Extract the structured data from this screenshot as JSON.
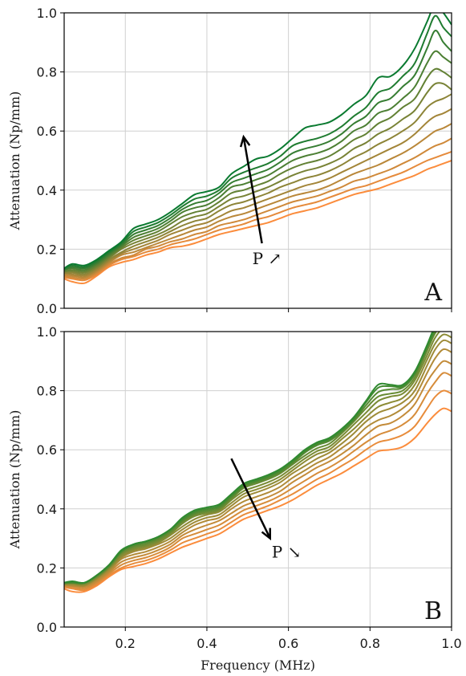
{
  "chart_data": [
    {
      "type": "line",
      "panel_label": "A",
      "ylabel": "Attenuation (Np/mm)",
      "xlabel": "",
      "xlim": [
        0.05,
        1.0
      ],
      "ylim": [
        0.0,
        1.0
      ],
      "xticks": [
        0.2,
        0.4,
        0.6,
        0.8,
        1.0
      ],
      "xtick_labels": [
        "",
        "",
        "",
        "",
        ""
      ],
      "yticks": [
        0.0,
        0.2,
        0.4,
        0.6,
        0.8,
        1.0
      ],
      "ytick_labels": [
        "0.0",
        "0.2",
        "0.4",
        "0.6",
        "0.8",
        "1.0"
      ],
      "grid": true,
      "legend": "none",
      "annotation": {
        "text": "P ↗",
        "arrow_from": [
          0.535,
          0.22
        ],
        "arrow_to": [
          0.49,
          0.58
        ]
      },
      "color_from": "#fb8c3c",
      "color_to": "#0a7a30",
      "x": [
        0.05,
        0.07,
        0.1,
        0.13,
        0.16,
        0.19,
        0.22,
        0.25,
        0.28,
        0.31,
        0.34,
        0.37,
        0.4,
        0.43,
        0.46,
        0.49,
        0.52,
        0.55,
        0.58,
        0.61,
        0.64,
        0.67,
        0.7,
        0.73,
        0.76,
        0.79,
        0.82,
        0.85,
        0.88,
        0.91,
        0.94,
        0.96,
        0.98,
        1.0
      ],
      "series": [
        {
          "values": [
            0.1,
            0.09,
            0.085,
            0.11,
            0.14,
            0.155,
            0.165,
            0.18,
            0.19,
            0.205,
            0.21,
            0.22,
            0.235,
            0.25,
            0.26,
            0.27,
            0.28,
            0.29,
            0.305,
            0.32,
            0.33,
            0.34,
            0.355,
            0.37,
            0.385,
            0.395,
            0.405,
            0.42,
            0.435,
            0.45,
            0.47,
            0.48,
            0.49,
            0.5
          ]
        },
        {
          "values": [
            0.105,
            0.1,
            0.095,
            0.115,
            0.145,
            0.165,
            0.175,
            0.19,
            0.2,
            0.215,
            0.225,
            0.235,
            0.25,
            0.265,
            0.275,
            0.285,
            0.3,
            0.31,
            0.325,
            0.34,
            0.35,
            0.36,
            0.375,
            0.39,
            0.405,
            0.415,
            0.43,
            0.445,
            0.46,
            0.48,
            0.5,
            0.51,
            0.52,
            0.53
          ]
        },
        {
          "values": [
            0.11,
            0.105,
            0.1,
            0.12,
            0.15,
            0.17,
            0.18,
            0.2,
            0.21,
            0.225,
            0.235,
            0.25,
            0.26,
            0.28,
            0.29,
            0.3,
            0.315,
            0.33,
            0.345,
            0.36,
            0.37,
            0.38,
            0.395,
            0.41,
            0.43,
            0.44,
            0.455,
            0.47,
            0.49,
            0.51,
            0.535,
            0.55,
            0.56,
            0.575
          ]
        },
        {
          "values": [
            0.115,
            0.11,
            0.105,
            0.125,
            0.155,
            0.18,
            0.19,
            0.205,
            0.22,
            0.235,
            0.25,
            0.265,
            0.275,
            0.295,
            0.31,
            0.32,
            0.335,
            0.35,
            0.365,
            0.38,
            0.39,
            0.4,
            0.415,
            0.435,
            0.455,
            0.47,
            0.485,
            0.505,
            0.525,
            0.55,
            0.58,
            0.6,
            0.61,
            0.625
          ]
        },
        {
          "values": [
            0.12,
            0.115,
            0.11,
            0.13,
            0.16,
            0.185,
            0.2,
            0.215,
            0.23,
            0.25,
            0.265,
            0.28,
            0.29,
            0.31,
            0.33,
            0.34,
            0.355,
            0.37,
            0.385,
            0.4,
            0.415,
            0.425,
            0.44,
            0.46,
            0.48,
            0.5,
            0.52,
            0.54,
            0.56,
            0.59,
            0.63,
            0.65,
            0.66,
            0.675
          ]
        },
        {
          "values": [
            0.12,
            0.12,
            0.115,
            0.135,
            0.165,
            0.19,
            0.21,
            0.225,
            0.24,
            0.26,
            0.28,
            0.295,
            0.305,
            0.33,
            0.35,
            0.36,
            0.375,
            0.39,
            0.41,
            0.425,
            0.44,
            0.45,
            0.465,
            0.485,
            0.51,
            0.53,
            0.555,
            0.575,
            0.6,
            0.63,
            0.68,
            0.7,
            0.71,
            0.725
          ]
        },
        {
          "values": [
            0.125,
            0.125,
            0.12,
            0.14,
            0.17,
            0.2,
            0.22,
            0.235,
            0.25,
            0.27,
            0.295,
            0.31,
            0.32,
            0.345,
            0.37,
            0.38,
            0.395,
            0.41,
            0.43,
            0.45,
            0.465,
            0.475,
            0.49,
            0.51,
            0.54,
            0.56,
            0.59,
            0.61,
            0.64,
            0.67,
            0.73,
            0.76,
            0.76,
            0.74
          ]
        },
        {
          "values": [
            0.125,
            0.13,
            0.125,
            0.145,
            0.175,
            0.205,
            0.23,
            0.245,
            0.26,
            0.285,
            0.31,
            0.325,
            0.335,
            0.36,
            0.39,
            0.4,
            0.415,
            0.43,
            0.455,
            0.475,
            0.49,
            0.5,
            0.515,
            0.54,
            0.57,
            0.59,
            0.625,
            0.645,
            0.68,
            0.71,
            0.78,
            0.81,
            0.8,
            0.78
          ]
        },
        {
          "values": [
            0.13,
            0.135,
            0.13,
            0.15,
            0.18,
            0.21,
            0.24,
            0.255,
            0.27,
            0.295,
            0.325,
            0.34,
            0.35,
            0.375,
            0.41,
            0.42,
            0.435,
            0.45,
            0.475,
            0.5,
            0.515,
            0.525,
            0.54,
            0.565,
            0.6,
            0.62,
            0.66,
            0.675,
            0.71,
            0.75,
            0.83,
            0.87,
            0.85,
            0.83
          ]
        },
        {
          "values": [
            0.13,
            0.14,
            0.135,
            0.155,
            0.185,
            0.215,
            0.25,
            0.265,
            0.28,
            0.305,
            0.335,
            0.355,
            0.365,
            0.39,
            0.425,
            0.44,
            0.455,
            0.47,
            0.495,
            0.525,
            0.54,
            0.55,
            0.565,
            0.59,
            0.625,
            0.65,
            0.695,
            0.71,
            0.75,
            0.79,
            0.88,
            0.94,
            0.9,
            0.87
          ]
        },
        {
          "values": [
            0.135,
            0.145,
            0.14,
            0.16,
            0.19,
            0.22,
            0.26,
            0.275,
            0.29,
            0.315,
            0.345,
            0.37,
            0.38,
            0.4,
            0.44,
            0.46,
            0.475,
            0.49,
            0.515,
            0.55,
            0.565,
            0.575,
            0.59,
            0.615,
            0.65,
            0.68,
            0.73,
            0.745,
            0.785,
            0.83,
            0.93,
            0.99,
            0.95,
            0.92
          ]
        },
        {
          "values": [
            0.135,
            0.15,
            0.145,
            0.165,
            0.195,
            0.225,
            0.27,
            0.285,
            0.3,
            0.325,
            0.355,
            0.385,
            0.395,
            0.41,
            0.455,
            0.48,
            0.505,
            0.515,
            0.54,
            0.575,
            0.61,
            0.62,
            0.63,
            0.655,
            0.69,
            0.72,
            0.78,
            0.785,
            0.82,
            0.88,
            0.97,
            1.03,
            1.0,
            0.96
          ]
        }
      ]
    },
    {
      "type": "line",
      "panel_label": "B",
      "ylabel": "Attenuation (Np/mm)",
      "xlabel": "Frequency (MHz)",
      "xlim": [
        0.05,
        1.0
      ],
      "ylim": [
        0.0,
        1.0
      ],
      "xticks": [
        0.2,
        0.4,
        0.6,
        0.8,
        1.0
      ],
      "xtick_labels": [
        "0.2",
        "0.4",
        "0.6",
        "0.8",
        "1.0"
      ],
      "yticks": [
        0.0,
        0.2,
        0.4,
        0.6,
        0.8,
        1.0
      ],
      "ytick_labels": [
        "0.0",
        "0.2",
        "0.4",
        "0.6",
        "0.8",
        "1.0"
      ],
      "grid": true,
      "legend": "none",
      "annotation": {
        "text": "P ↘",
        "arrow_from": [
          0.46,
          0.57
        ],
        "arrow_to": [
          0.555,
          0.3
        ]
      },
      "color_from": "#fb8c3c",
      "color_to": "#2f8a30",
      "x": [
        0.05,
        0.07,
        0.1,
        0.13,
        0.16,
        0.19,
        0.22,
        0.25,
        0.28,
        0.31,
        0.34,
        0.37,
        0.4,
        0.43,
        0.46,
        0.49,
        0.52,
        0.55,
        0.58,
        0.61,
        0.64,
        0.67,
        0.7,
        0.73,
        0.76,
        0.79,
        0.82,
        0.85,
        0.88,
        0.91,
        0.94,
        0.96,
        0.98,
        1.0
      ],
      "series": [
        {
          "values": [
            0.13,
            0.12,
            0.12,
            0.14,
            0.17,
            0.195,
            0.205,
            0.215,
            0.23,
            0.25,
            0.27,
            0.285,
            0.3,
            0.315,
            0.34,
            0.365,
            0.38,
            0.395,
            0.41,
            0.43,
            0.455,
            0.48,
            0.5,
            0.52,
            0.545,
            0.57,
            0.595,
            0.6,
            0.61,
            0.64,
            0.69,
            0.72,
            0.74,
            0.73
          ]
        },
        {
          "values": [
            0.135,
            0.13,
            0.125,
            0.145,
            0.175,
            0.2,
            0.215,
            0.225,
            0.24,
            0.26,
            0.285,
            0.3,
            0.315,
            0.33,
            0.355,
            0.38,
            0.395,
            0.41,
            0.43,
            0.45,
            0.475,
            0.5,
            0.52,
            0.545,
            0.57,
            0.6,
            0.625,
            0.635,
            0.65,
            0.68,
            0.74,
            0.78,
            0.8,
            0.79
          ]
        },
        {
          "values": [
            0.14,
            0.135,
            0.13,
            0.15,
            0.18,
            0.21,
            0.225,
            0.235,
            0.25,
            0.27,
            0.3,
            0.315,
            0.33,
            0.345,
            0.37,
            0.395,
            0.41,
            0.425,
            0.445,
            0.47,
            0.495,
            0.52,
            0.54,
            0.565,
            0.595,
            0.625,
            0.65,
            0.665,
            0.685,
            0.72,
            0.79,
            0.83,
            0.86,
            0.85
          ]
        },
        {
          "values": [
            0.14,
            0.14,
            0.135,
            0.155,
            0.185,
            0.22,
            0.235,
            0.245,
            0.26,
            0.28,
            0.31,
            0.33,
            0.345,
            0.36,
            0.385,
            0.41,
            0.425,
            0.44,
            0.46,
            0.49,
            0.515,
            0.54,
            0.56,
            0.585,
            0.615,
            0.65,
            0.68,
            0.69,
            0.715,
            0.755,
            0.83,
            0.87,
            0.9,
            0.89
          ]
        },
        {
          "values": [
            0.145,
            0.14,
            0.14,
            0.16,
            0.19,
            0.23,
            0.245,
            0.255,
            0.27,
            0.29,
            0.32,
            0.345,
            0.36,
            0.37,
            0.4,
            0.425,
            0.44,
            0.455,
            0.475,
            0.505,
            0.53,
            0.555,
            0.575,
            0.605,
            0.635,
            0.675,
            0.7,
            0.715,
            0.74,
            0.78,
            0.86,
            0.91,
            0.94,
            0.93
          ]
        },
        {
          "values": [
            0.145,
            0.145,
            0.14,
            0.165,
            0.195,
            0.235,
            0.255,
            0.265,
            0.28,
            0.3,
            0.33,
            0.355,
            0.37,
            0.38,
            0.41,
            0.44,
            0.455,
            0.47,
            0.49,
            0.52,
            0.545,
            0.57,
            0.59,
            0.62,
            0.655,
            0.695,
            0.725,
            0.74,
            0.76,
            0.8,
            0.885,
            0.94,
            0.97,
            0.96
          ]
        },
        {
          "values": [
            0.145,
            0.145,
            0.145,
            0.165,
            0.2,
            0.24,
            0.26,
            0.27,
            0.285,
            0.31,
            0.34,
            0.365,
            0.38,
            0.39,
            0.42,
            0.45,
            0.465,
            0.48,
            0.5,
            0.53,
            0.56,
            0.585,
            0.6,
            0.635,
            0.67,
            0.71,
            0.745,
            0.76,
            0.775,
            0.82,
            0.905,
            0.96,
            0.99,
            0.98
          ]
        },
        {
          "values": [
            0.145,
            0.15,
            0.145,
            0.17,
            0.2,
            0.245,
            0.265,
            0.275,
            0.29,
            0.315,
            0.35,
            0.375,
            0.385,
            0.395,
            0.43,
            0.46,
            0.475,
            0.49,
            0.51,
            0.54,
            0.57,
            0.595,
            0.61,
            0.645,
            0.685,
            0.725,
            0.765,
            0.78,
            0.79,
            0.835,
            0.92,
            0.98,
            1.01,
            1.0
          ]
        },
        {
          "values": [
            0.15,
            0.15,
            0.15,
            0.17,
            0.205,
            0.25,
            0.27,
            0.28,
            0.295,
            0.32,
            0.355,
            0.38,
            0.39,
            0.4,
            0.435,
            0.47,
            0.485,
            0.5,
            0.52,
            0.55,
            0.58,
            0.605,
            0.62,
            0.655,
            0.695,
            0.74,
            0.78,
            0.79,
            0.8,
            0.845,
            0.935,
            0.995,
            1.02,
            1.01
          ]
        },
        {
          "values": [
            0.15,
            0.15,
            0.15,
            0.175,
            0.205,
            0.255,
            0.275,
            0.285,
            0.3,
            0.325,
            0.36,
            0.385,
            0.395,
            0.405,
            0.44,
            0.475,
            0.49,
            0.505,
            0.525,
            0.555,
            0.59,
            0.615,
            0.63,
            0.66,
            0.7,
            0.75,
            0.795,
            0.805,
            0.81,
            0.855,
            0.945,
            1.0,
            1.03,
            1.02
          ]
        },
        {
          "values": [
            0.15,
            0.15,
            0.15,
            0.175,
            0.21,
            0.255,
            0.28,
            0.29,
            0.305,
            0.33,
            0.365,
            0.39,
            0.4,
            0.41,
            0.445,
            0.48,
            0.495,
            0.51,
            0.53,
            0.56,
            0.595,
            0.62,
            0.635,
            0.665,
            0.705,
            0.76,
            0.81,
            0.815,
            0.815,
            0.86,
            0.95,
            1.01,
            1.04,
            1.03
          ]
        },
        {
          "values": [
            0.15,
            0.155,
            0.15,
            0.175,
            0.21,
            0.26,
            0.28,
            0.29,
            0.305,
            0.33,
            0.37,
            0.395,
            0.405,
            0.415,
            0.45,
            0.485,
            0.5,
            0.515,
            0.535,
            0.565,
            0.6,
            0.625,
            0.64,
            0.67,
            0.71,
            0.765,
            0.82,
            0.82,
            0.82,
            0.865,
            0.955,
            1.02,
            1.05,
            1.04
          ]
        }
      ]
    }
  ]
}
